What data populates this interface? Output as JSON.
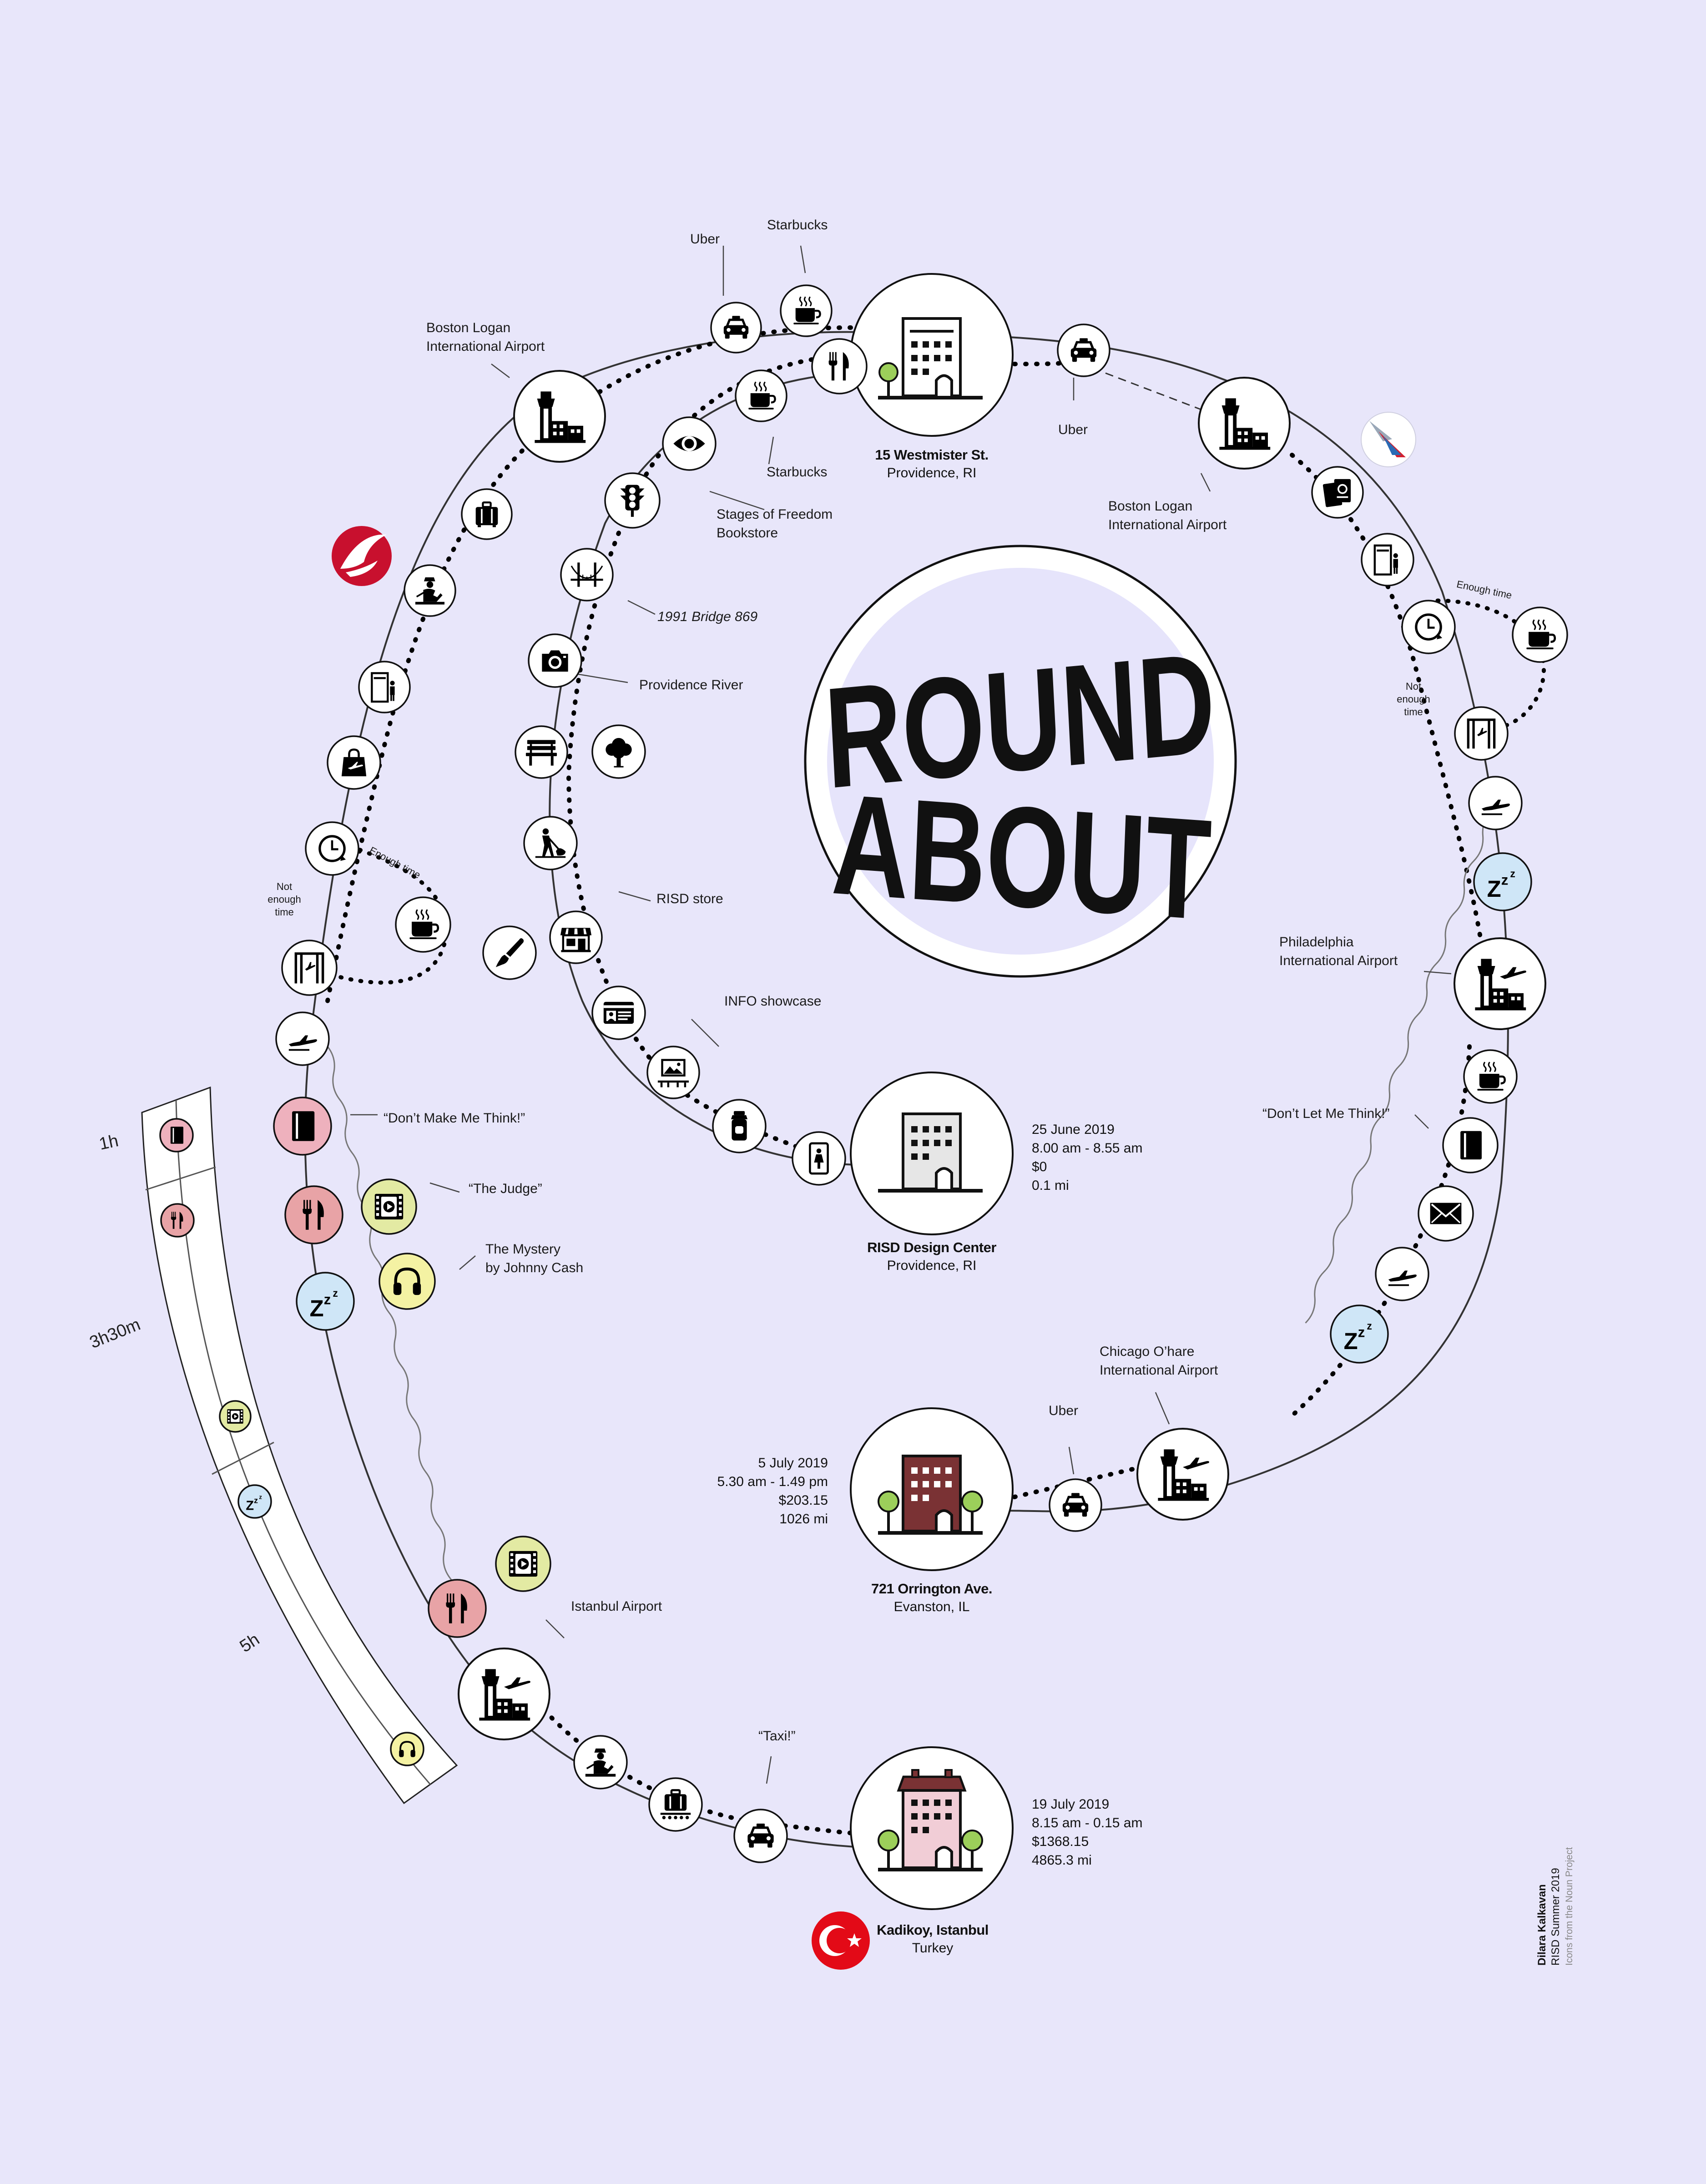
{
  "title": {
    "line1": "ROUND",
    "line2": "ABOUT"
  },
  "colors": {
    "background": "#e8e6fa",
    "sleep": "#cfe6f7",
    "food": "#e8a3a6",
    "reading": "#eeb1bd",
    "media": "#e3eaa3",
    "music": "#f4f2a3",
    "building_gray": "#e6e6e6",
    "building_brown": "#7a3234",
    "building_pink": "#f1cdd6",
    "turkish_red": "#e30a17"
  },
  "places": {
    "home": {
      "name": "15 Westmister St.",
      "sub": "Providence, RI"
    },
    "risd": {
      "name": "RISD Design Center",
      "sub": "Providence, RI"
    },
    "evanston": {
      "name": "721 Orrington Ave.",
      "sub": "Evanston, IL"
    },
    "kadikoy": {
      "name": "Kadikoy, Istanbul",
      "sub": "Turkey"
    }
  },
  "trips": {
    "risd": {
      "date": "25 June 2019",
      "time": "8.00 am - 8.55 am",
      "cost": "$0",
      "distance": "0.1 mi"
    },
    "evanston": {
      "date": "5 July 2019",
      "time": "5.30 am - 1.49 pm",
      "cost": "$203.15",
      "distance": "1026 mi"
    },
    "kadikoy": {
      "date": "19 July 2019",
      "time": "8.15 am - 0.15 am",
      "cost": "$1368.15",
      "distance": "4865.3 mi"
    }
  },
  "labels": {
    "uber_top": "Uber",
    "starbucks_top": "Starbucks",
    "logan_left": "Boston Logan\nInternational Airport",
    "starbucks_inner": "Starbucks",
    "stages": "Stages of Freedom\nBookstore",
    "bridge": "1991 Bridge 869",
    "river": "Providence River",
    "risd_store": "RISD store",
    "info_showcase": "INFO showcase",
    "enough_time": "Enough time",
    "not_enough_time": "Not\nenough\ntime",
    "dont_make": "“Don’t Make Me Think!”",
    "judge": "“The Judge”",
    "mystery": "The Mystery\nby Johnny Cash",
    "istanbul_airport": "Istanbul Airport",
    "taxi": "“Taxi!”",
    "uber_right": "Uber",
    "logan_right": "Boston Logan\nInternational Airport",
    "philly": "Philadelphia\nInternational Airport",
    "dont_let": "“Don’t Let Me Think!”",
    "ohare": "Chicago O’hare\nInternational Airport",
    "uber_evanston": "Uber"
  },
  "timeline": {
    "h1": "1h",
    "h3": "3h30m",
    "h5": "5h"
  },
  "credits": {
    "author": "Dilara Kalkavan",
    "program": "RISD Summer 2019",
    "icons": "Icons from the Noun Project"
  },
  "icons": {
    "taxi": "taxi-icon",
    "coffee": "coffee-icon",
    "airport": "airport-icon",
    "luggage": "luggage-icon",
    "officer": "customs-officer-icon",
    "scanner": "security-scanner-icon",
    "bag": "shopping-bag-icon",
    "clock": "clock-icon",
    "gate": "boarding-gate-icon",
    "plane": "plane-icon",
    "book": "book-icon",
    "food": "food-icon",
    "sleep": "sleep-icon",
    "film": "film-icon",
    "headphones": "headphones-icon",
    "eye": "eye-icon",
    "traffic": "traffic-light-icon",
    "bridge": "bridge-icon",
    "camera": "camera-icon",
    "bench": "bench-icon",
    "tree": "tree-icon",
    "worker": "worker-icon",
    "store": "store-icon",
    "brush": "paintbrush-icon",
    "id": "id-card-icon",
    "gallery": "gallery-icon",
    "bottle": "bottle-icon",
    "restroom": "restroom-icon",
    "passport": "passport-icon",
    "mail": "mail-icon",
    "baggage": "baggage-claim-icon",
    "turkish_airlines": "turkish-airlines-logo",
    "american_airlines": "american-airlines-logo",
    "turkey_flag": "turkey-flag-icon"
  }
}
